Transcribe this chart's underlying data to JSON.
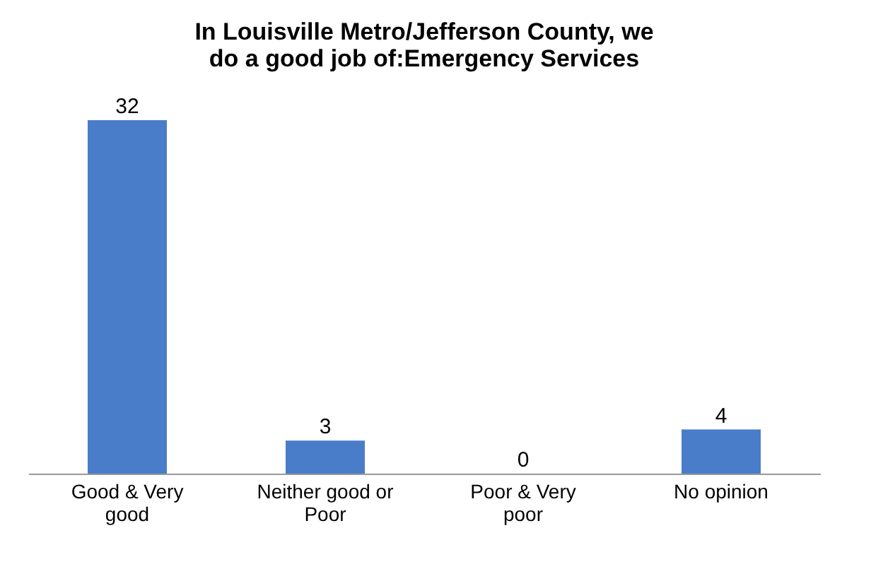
{
  "chart_data": {
    "type": "bar",
    "title": "In Louisville Metro/Jefferson County, we do a good job of:Emergency Services",
    "categories": [
      "Good & Very good",
      "Neither good or Poor",
      "Poor & Very poor",
      "No opinion"
    ],
    "values": [
      32,
      3,
      0,
      4
    ],
    "color": "#4a7dc9",
    "data_labels": true
  }
}
